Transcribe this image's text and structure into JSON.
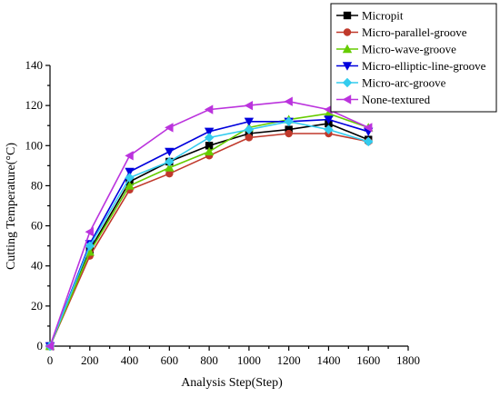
{
  "chart_data": {
    "type": "line",
    "title": "",
    "xlabel": "Analysis Step(Step)",
    "ylabel": "Cutting Temperature(°C)",
    "xlim": [
      0,
      1800
    ],
    "ylim": [
      0,
      140
    ],
    "xticks": [
      "0",
      "200",
      "400",
      "600",
      "800",
      "1000",
      "1200",
      "1400",
      "1600",
      "1800"
    ],
    "yticks": [
      "0",
      "20",
      "40",
      "60",
      "80",
      "100",
      "120",
      "140"
    ],
    "grid": false,
    "legend_position": "top-right",
    "x": [
      0,
      200,
      400,
      600,
      800,
      1000,
      1200,
      1400,
      1600
    ],
    "series": [
      {
        "name": "Micropit",
        "color": "#000000",
        "marker": "square",
        "values": [
          0,
          48,
          82,
          92,
          100,
          106,
          108,
          111,
          103
        ]
      },
      {
        "name": "Micro-parallel-groove",
        "color": "#c0392b",
        "marker": "circle",
        "values": [
          0,
          45,
          78,
          86,
          95,
          104,
          106,
          106,
          102
        ]
      },
      {
        "name": "Micro-wave-groove",
        "color": "#66cc00",
        "marker": "triangle-up",
        "values": [
          0,
          47,
          80,
          89,
          97,
          109,
          113,
          116,
          109
        ]
      },
      {
        "name": "Micro-elliptic-line-groove",
        "color": "#0000dd",
        "marker": "triangle-down",
        "values": [
          0,
          51,
          87,
          97,
          107,
          112,
          112,
          113,
          107
        ]
      },
      {
        "name": "Micro-arc-groove",
        "color": "#33ccee",
        "marker": "diamond",
        "values": [
          0,
          50,
          84,
          92,
          104,
          108,
          112,
          108,
          102
        ]
      },
      {
        "name": "None-textured",
        "color": "#bb33dd",
        "marker": "triangle-left",
        "values": [
          0,
          57,
          95,
          109,
          118,
          120,
          122,
          118,
          109
        ]
      }
    ]
  }
}
